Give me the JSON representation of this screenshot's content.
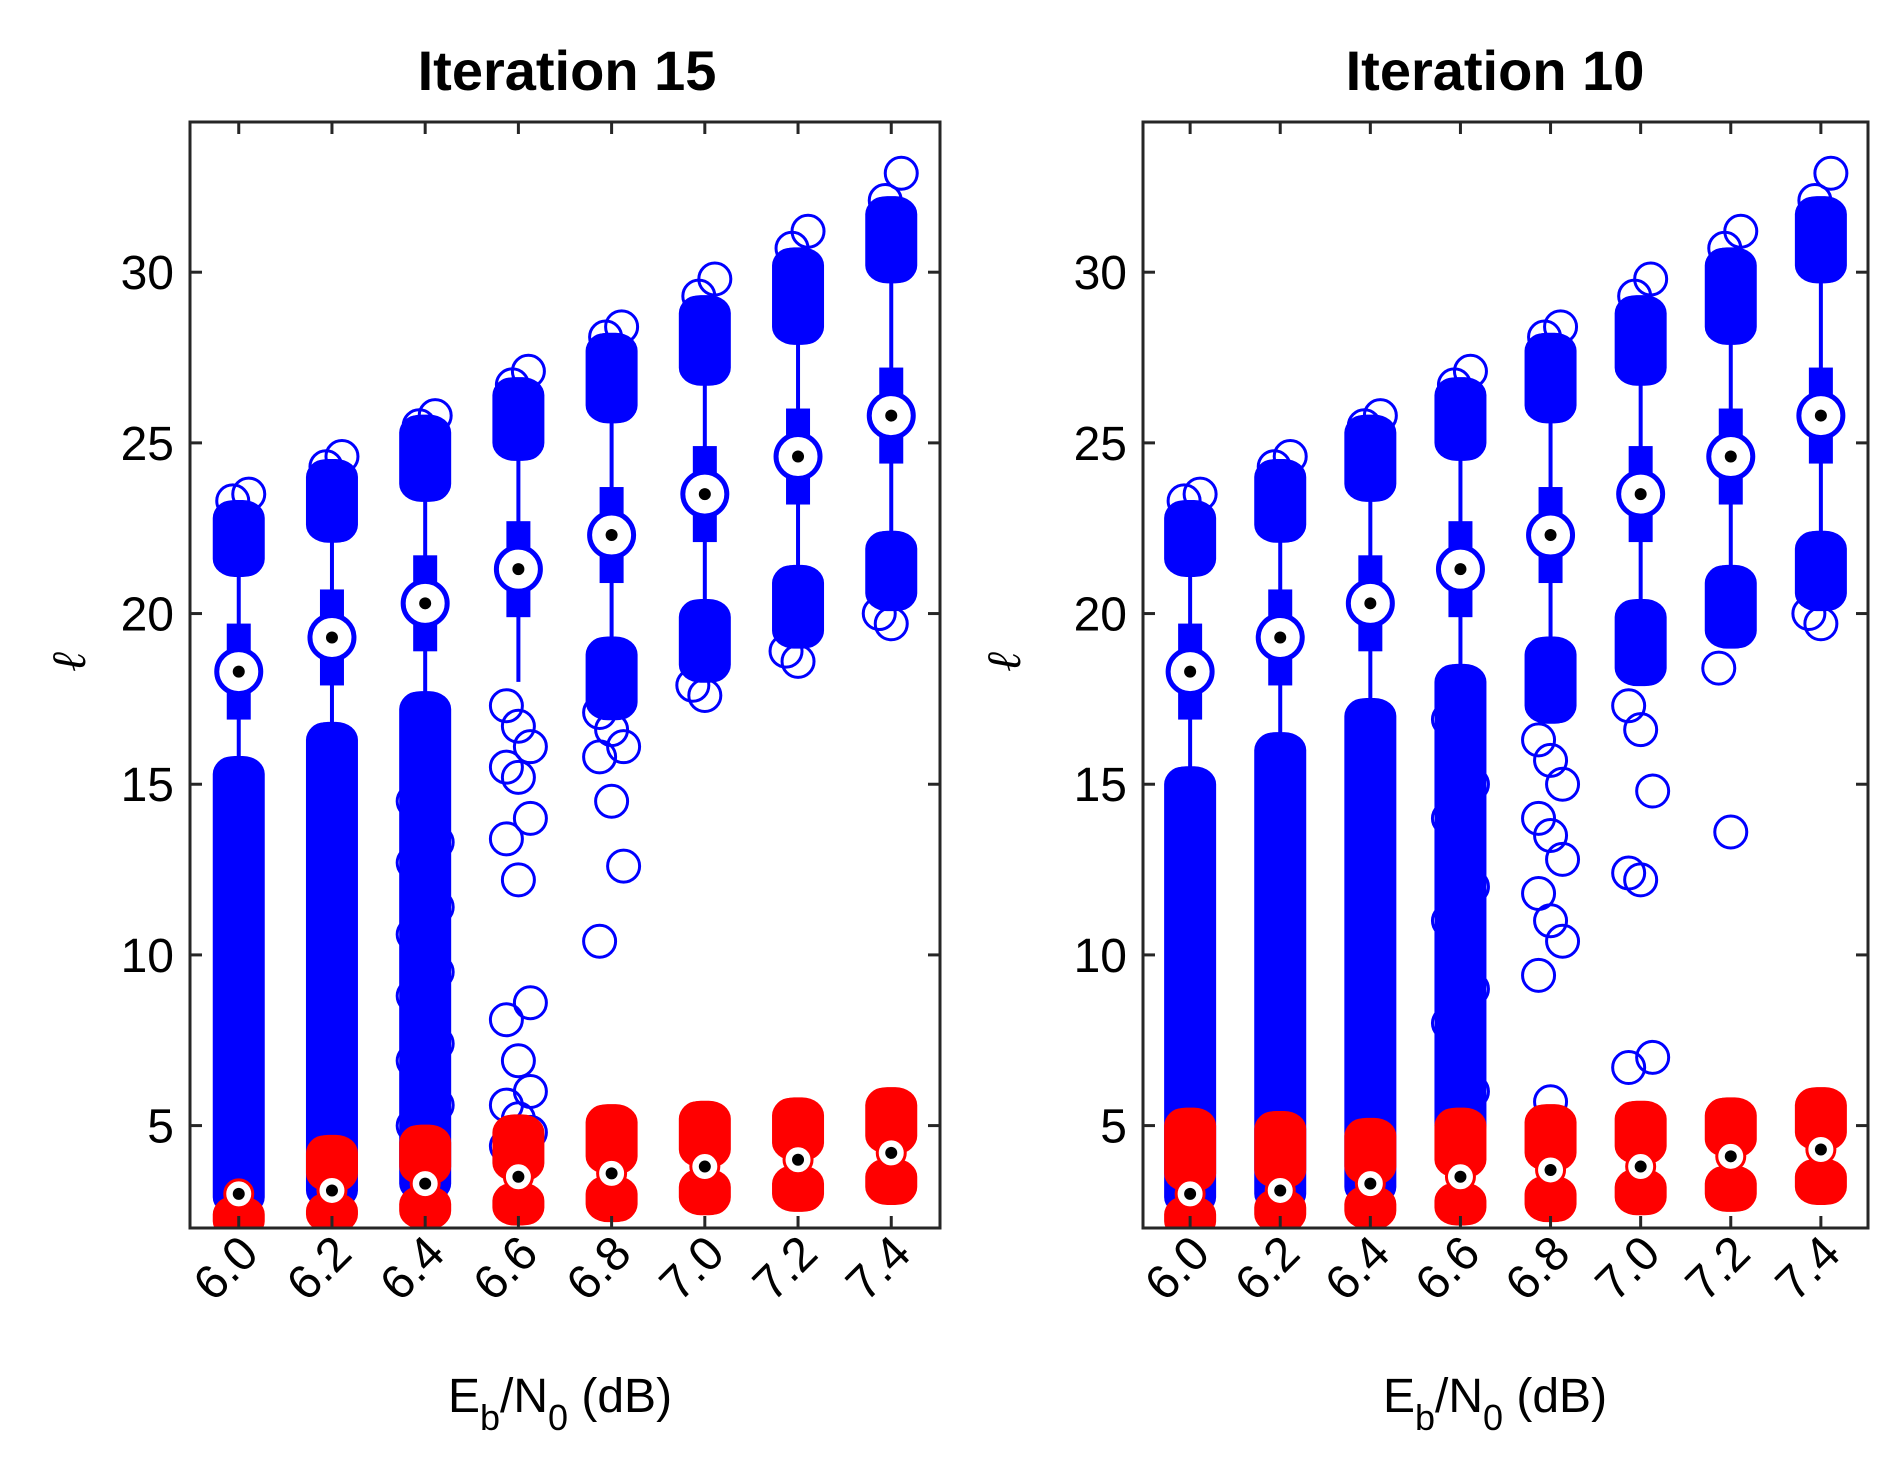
{
  "chart_data": [
    {
      "type": "scatter",
      "title": "Iteration 15",
      "xlabel": {
        "main": "E",
        "sub1": "b",
        "mid": "/N",
        "sub2": "0",
        "unit": " (dB)"
      },
      "ylabel": "ℓ",
      "categories": [
        "6.0",
        "6.2",
        "6.4",
        "6.6",
        "6.8",
        "7.0",
        "7.2",
        "7.4"
      ],
      "ylim": [
        2.0,
        34.4
      ],
      "yticks": [
        5,
        10,
        15,
        20,
        25,
        30
      ],
      "grid": false,
      "series": [
        {
          "color": "#0000ff",
          "median": [
            18.3,
            19.3,
            20.3,
            21.3,
            22.3,
            23.5,
            24.6,
            25.8
          ],
          "q1": [
            18.3,
            19.3,
            20.3,
            21.3,
            22.3,
            23.5,
            24.6,
            25.8
          ],
          "q3": [
            18.3,
            19.3,
            20.3,
            21.3,
            22.3,
            23.5,
            24.6,
            25.8
          ],
          "whisker_low": [
            15.3,
            16.3,
            17.2,
            18.0,
            18.8,
            19.9,
            20.9,
            21.9
          ],
          "whisker_high": [
            21.6,
            22.6,
            23.8,
            25.0,
            26.1,
            27.2,
            28.4,
            30.2
          ],
          "dense_low_lo": [
            2.9,
            3.1,
            3.3,
            null,
            17.4,
            18.5,
            19.5,
            20.6
          ],
          "dense_low_hi": [
            15.3,
            16.3,
            17.2,
            18.0,
            18.8,
            19.9,
            20.9,
            21.9
          ],
          "dense_high_lo": [
            21.6,
            22.6,
            23.8,
            25.0,
            26.1,
            27.2,
            28.4,
            30.2
          ],
          "dense_high_hi": [
            22.8,
            24.0,
            25.3,
            26.4,
            27.7,
            28.8,
            30.2,
            31.7
          ],
          "outliers_high": [
            [
              23.3,
              23.5
            ],
            [
              24.3,
              24.6
            ],
            [
              25.5,
              25.8
            ],
            [
              26.7,
              27.1
            ],
            [
              28.1,
              28.4
            ],
            [
              29.3,
              29.8
            ],
            [
              30.7,
              31.2
            ],
            [
              32.1,
              32.9
            ]
          ],
          "outliers_low": [
            [],
            [],
            [
              14.5,
              13.9,
              13.3,
              12.7,
              12.3,
              11.4,
              10.6,
              10.1,
              9.5,
              8.8,
              8.2,
              7.4,
              6.9,
              6.2,
              5.6,
              5.0,
              4.5
            ],
            [
              17.3,
              16.7,
              16.1,
              15.5,
              15.2,
              14.0,
              13.4,
              12.2,
              8.6,
              8.1,
              6.9,
              6.0,
              5.6,
              5.2,
              4.8,
              4.4,
              4.1
            ],
            [
              17.1,
              16.6,
              16.1,
              15.8,
              14.5,
              12.6,
              10.4
            ],
            [
              17.9,
              17.6
            ],
            [
              18.9,
              18.6
            ],
            [
              20.0,
              19.7
            ]
          ]
        },
        {
          "color": "#ff0000",
          "median": [
            3.0,
            3.1,
            3.3,
            3.5,
            3.6,
            3.8,
            4.0,
            4.2
          ],
          "dense_low_lo": [
            2.2,
            2.4,
            2.5,
            2.6,
            2.7,
            2.9,
            3.0,
            3.2
          ],
          "dense_low_hi": [
            2.4,
            2.5,
            2.7,
            2.8,
            3.0,
            3.2,
            3.3,
            3.5
          ],
          "dense_high_lo": [
            null,
            3.6,
            3.8,
            3.9,
            4.1,
            4.3,
            4.5,
            4.7
          ],
          "dense_high_hi": [
            null,
            4.2,
            4.5,
            4.8,
            5.1,
            5.2,
            5.3,
            5.6
          ]
        }
      ]
    },
    {
      "type": "scatter",
      "title": "Iteration 10",
      "xlabel": {
        "main": "E",
        "sub1": "b",
        "mid": "/N",
        "sub2": "0",
        "unit": " (dB)"
      },
      "ylabel": "ℓ",
      "categories": [
        "6.0",
        "6.2",
        "6.4",
        "6.6",
        "6.8",
        "7.0",
        "7.2",
        "7.4"
      ],
      "ylim": [
        2.0,
        34.4
      ],
      "yticks": [
        5,
        10,
        15,
        20,
        25,
        30
      ],
      "grid": false,
      "series": [
        {
          "color": "#0000ff",
          "median": [
            18.3,
            19.3,
            20.3,
            21.3,
            22.3,
            23.5,
            24.6,
            25.8
          ],
          "q1": [
            18.3,
            19.3,
            20.3,
            21.3,
            22.3,
            23.5,
            24.6,
            25.8
          ],
          "q3": [
            18.3,
            19.3,
            20.3,
            21.3,
            22.3,
            23.5,
            24.6,
            25.8
          ],
          "whisker_low": [
            15.0,
            16.0,
            17.0,
            18.0,
            18.8,
            19.9,
            20.9,
            21.9
          ],
          "whisker_high": [
            21.6,
            22.6,
            23.8,
            25.0,
            26.1,
            27.2,
            28.4,
            30.2
          ],
          "dense_low_lo": [
            2.9,
            3.0,
            3.2,
            5.0,
            17.3,
            18.4,
            19.5,
            20.6
          ],
          "dense_low_hi": [
            15.0,
            16.0,
            17.0,
            18.0,
            18.8,
            19.9,
            20.9,
            21.9
          ],
          "dense_high_lo": [
            21.6,
            22.6,
            23.8,
            25.0,
            26.1,
            27.2,
            28.4,
            30.2
          ],
          "dense_high_hi": [
            22.8,
            24.0,
            25.3,
            26.4,
            27.7,
            28.8,
            30.2,
            31.7
          ],
          "outliers_high": [
            [
              23.3,
              23.5
            ],
            [
              24.3,
              24.6
            ],
            [
              25.5,
              25.8
            ],
            [
              26.7,
              27.1
            ],
            [
              28.1,
              28.4
            ],
            [
              29.3,
              29.8
            ],
            [
              30.7,
              31.2
            ],
            [
              32.1,
              32.9
            ]
          ],
          "outliers_low": [
            [],
            [],
            [],
            [
              16.9,
              16.0,
              15.0,
              14.0,
              13.0,
              12.0,
              11.0,
              10.0,
              9.0,
              8.0,
              7.0,
              6.0
            ],
            [
              16.3,
              15.7,
              15.0,
              14.0,
              13.5,
              12.8,
              11.8,
              11.0,
              10.4,
              9.4,
              5.7
            ],
            [
              17.3,
              16.6,
              14.8,
              12.4,
              12.2,
              7.0,
              6.7
            ],
            [
              18.4,
              13.6
            ],
            [
              20.0,
              19.7
            ]
          ]
        },
        {
          "color": "#ff0000",
          "median": [
            3.0,
            3.1,
            3.3,
            3.5,
            3.7,
            3.8,
            4.1,
            4.3
          ],
          "dense_low_lo": [
            2.2,
            2.4,
            2.5,
            2.6,
            2.7,
            2.9,
            3.0,
            3.2
          ],
          "dense_low_hi": [
            2.4,
            2.6,
            2.7,
            2.8,
            3.0,
            3.2,
            3.3,
            3.5
          ],
          "dense_high_lo": [
            3.6,
            3.7,
            3.8,
            4.0,
            4.2,
            4.4,
            4.6,
            4.8
          ],
          "dense_high_hi": [
            5.0,
            4.9,
            4.7,
            5.0,
            5.1,
            5.2,
            5.3,
            5.6
          ]
        }
      ]
    }
  ]
}
